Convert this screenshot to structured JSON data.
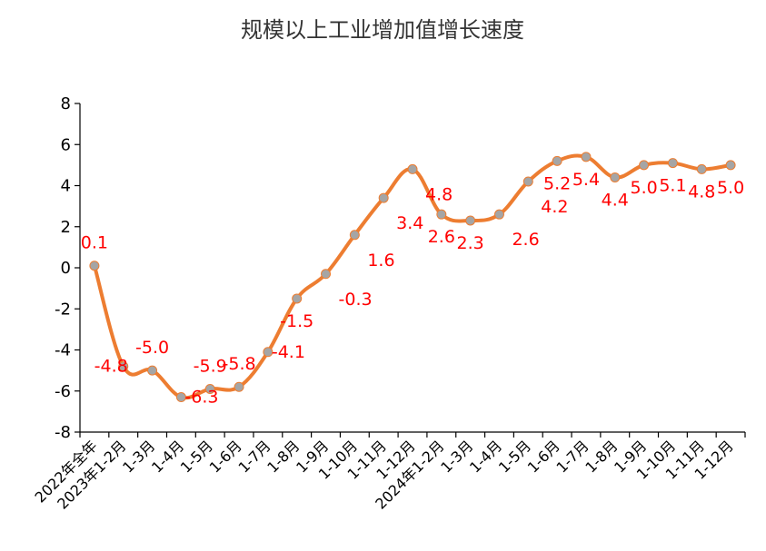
{
  "chart_data": {
    "type": "line",
    "title": "规模以上工业增加值增长速度",
    "xlabel": "",
    "ylabel": "",
    "ylim": [
      -8,
      8
    ],
    "yticks": [
      8,
      6,
      4,
      2,
      0,
      -2,
      -4,
      -6,
      -8
    ],
    "grid": false,
    "legend": "none",
    "categories": [
      "2022年全年",
      "2023年1-2月",
      "1-3月",
      "1-4月",
      "1-5月",
      "1-6月",
      "1-7月",
      "1-8月",
      "1-9月",
      "1-10月",
      "1-11月",
      "1-12月",
      "2024年1-2月",
      "1-3月",
      "1-4月",
      "1-5月",
      "1-6月",
      "1-7月",
      "1-8月",
      "1-9月",
      "1-10月",
      "1-11月",
      "1-12月"
    ],
    "values": [
      0.1,
      -4.8,
      -5.0,
      -6.3,
      -5.9,
      -5.8,
      -4.1,
      -1.5,
      -0.3,
      1.6,
      3.4,
      4.8,
      2.6,
      2.3,
      2.6,
      4.2,
      5.2,
      5.4,
      4.4,
      5.0,
      5.1,
      4.8,
      5.0
    ],
    "data_labels": [
      "0.1",
      "-4.8",
      "-5.0",
      "-6.3",
      "-5.9",
      "-5.8",
      "-4.1",
      "-1.5",
      "-0.3",
      "1.6",
      "3.4",
      "4.8",
      "2.6",
      "2.3",
      "2.6",
      "4.2",
      "5.2",
      "5.4",
      "4.4",
      "5.0",
      "5.1",
      "4.8",
      "5.0"
    ],
    "colors": {
      "line": "#ed7d31",
      "marker": "#a5a5a5",
      "label": "#ff0000",
      "axis": "#000000",
      "title": "#333333"
    }
  }
}
